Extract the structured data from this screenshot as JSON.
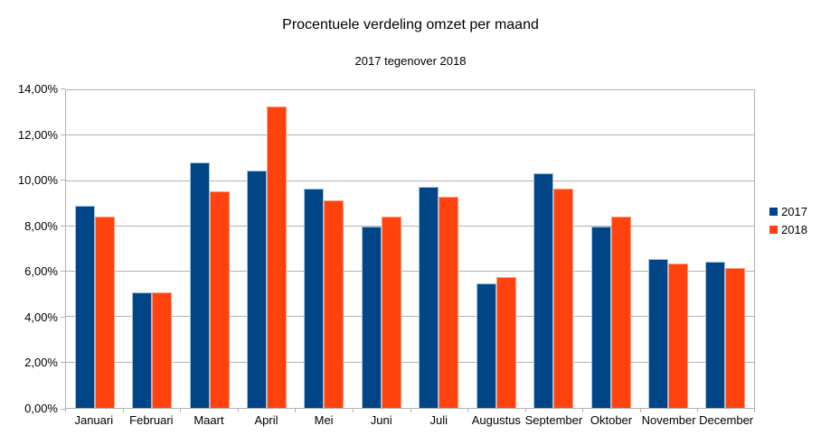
{
  "chart_data": {
    "type": "bar",
    "title": "Procentuele verdeling omzet per maand",
    "subtitle": "2017 tegenover 2018",
    "categories": [
      "Januari",
      "Februari",
      "Maart",
      "April",
      "Mei",
      "Juni",
      "Juli",
      "Augustus",
      "September",
      "Oktober",
      "November",
      "December"
    ],
    "series": [
      {
        "name": "2017",
        "color": "#004586",
        "border_color": "#9DC3E6",
        "values": [
          8.9,
          5.1,
          10.8,
          10.45,
          9.65,
          8.0,
          9.75,
          5.5,
          10.35,
          8.0,
          6.55,
          6.45
        ]
      },
      {
        "name": "2018",
        "color": "#FF420E",
        "border_color": "#FF9D7E",
        "values": [
          8.45,
          5.1,
          9.55,
          13.3,
          9.15,
          8.45,
          9.3,
          5.75,
          9.65,
          8.45,
          6.35,
          6.15
        ]
      }
    ],
    "ylim": [
      0,
      14
    ],
    "y_ticks": [
      0,
      2,
      4,
      6,
      8,
      10,
      12,
      14
    ],
    "y_tick_labels": [
      "0,00%",
      "2,00%",
      "4,00%",
      "6,00%",
      "8,00%",
      "10,00%",
      "12,00%",
      "14,00%"
    ],
    "xlabel": "",
    "ylabel": "",
    "grid": "horizontal",
    "legend_position": "right",
    "colors": {
      "background": "#FFFFFF",
      "gridline": "#B3B3B3",
      "axis": "#B3B3B3",
      "text": "#000000"
    }
  }
}
